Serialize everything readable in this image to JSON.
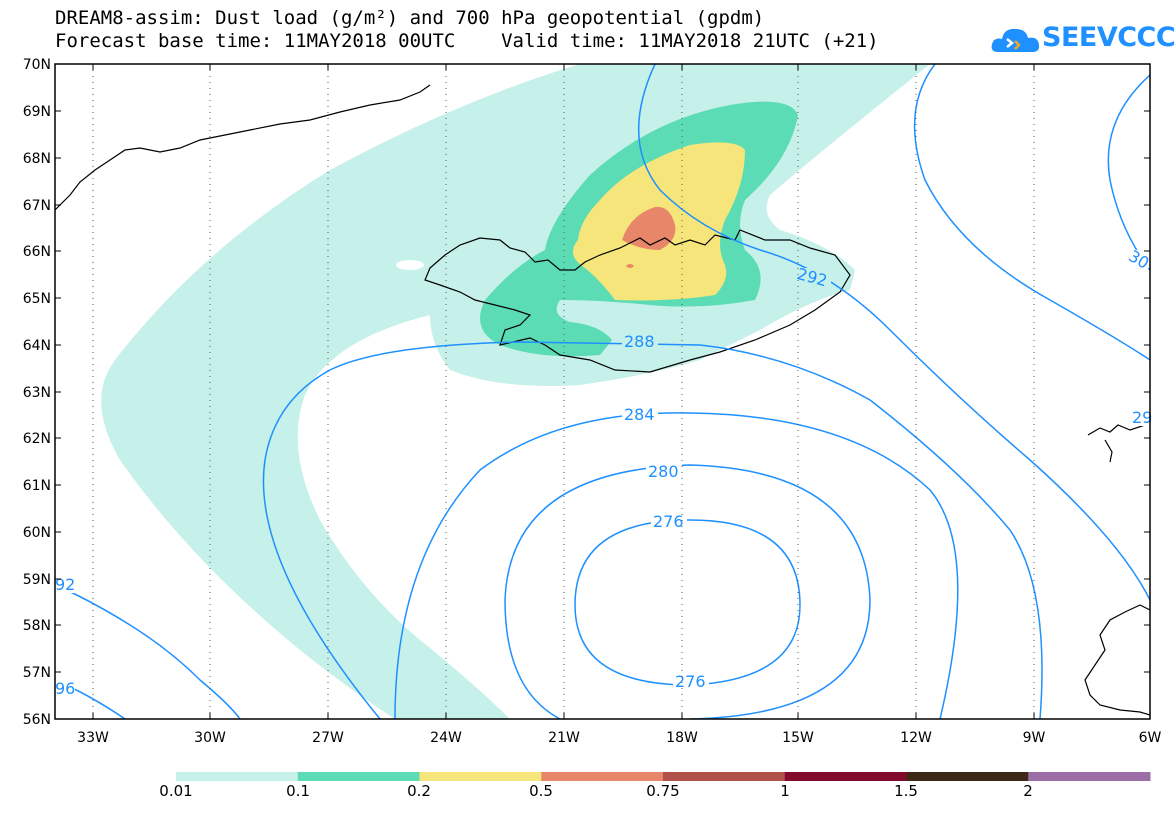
{
  "title": {
    "line1": "DREAM8-assim: Dust load (g/m²) and 700 hPa geopotential (gpdm)",
    "line2": "Forecast base time: 11MAY2018 00UTC    Valid time: 11MAY2018 21UTC (+21)"
  },
  "logo": {
    "text": "SEEVCCC",
    "icon": "cloud-icon",
    "color": "#1e90ff"
  },
  "map": {
    "lat_labels": [
      "70N",
      "69N",
      "68N",
      "67N",
      "66N",
      "65N",
      "64N",
      "63N",
      "62N",
      "61N",
      "60N",
      "59N",
      "58N",
      "57N",
      "56N"
    ],
    "lon_labels": [
      "33W",
      "30W",
      "27W",
      "24W",
      "21W",
      "18W",
      "15W",
      "12W",
      "9W",
      "6W"
    ],
    "contour_labels": [
      "288",
      "284",
      "280",
      "276",
      "276",
      "292",
      "92",
      "96",
      "30",
      "29"
    ]
  },
  "legend": {
    "colors": [
      "#c6f0ea",
      "#5cdcb4",
      "#f5e57a",
      "#e8866a",
      "#b0524a",
      "#820a2c",
      "#3c2814",
      "#9b6fa5"
    ],
    "labels": [
      "0.01",
      "0.1",
      "0.2",
      "0.5",
      "0.75",
      "1",
      "1.5",
      "2"
    ]
  }
}
